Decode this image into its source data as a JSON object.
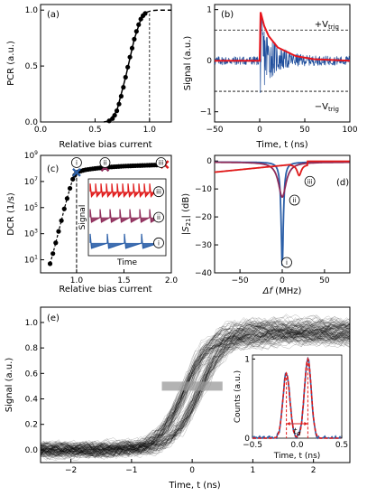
{
  "chart_data": [
    {
      "panel": "(a)",
      "type": "line",
      "xlabel": "Relative bias current",
      "ylabel": "PCR (a.u.)",
      "xlim": [
        0.0,
        1.2
      ],
      "ylim": [
        0.0,
        1.05
      ],
      "xticks": [
        "0.0",
        "0.5",
        "1.0"
      ],
      "yticks": [
        "0.0",
        "0.5",
        "1.0"
      ],
      "series": [
        {
          "style": "markers",
          "x": [
            0.63,
            0.66,
            0.68,
            0.7,
            0.72,
            0.74,
            0.76,
            0.78,
            0.8,
            0.82,
            0.84,
            0.86,
            0.88,
            0.9,
            0.92,
            0.94,
            0.96
          ],
          "y": [
            0.01,
            0.03,
            0.06,
            0.1,
            0.16,
            0.23,
            0.31,
            0.4,
            0.49,
            0.58,
            0.66,
            0.74,
            0.81,
            0.87,
            0.92,
            0.95,
            0.97
          ]
        },
        {
          "style": "solid",
          "x": [
            0.58,
            0.63,
            0.7,
            0.78,
            0.86,
            0.92,
            0.97
          ],
          "y": [
            0.0,
            0.01,
            0.1,
            0.4,
            0.74,
            0.92,
            0.98
          ]
        },
        {
          "style": "dashed",
          "x": [
            0.97,
            1.02,
            1.08,
            1.15,
            1.2
          ],
          "y": [
            0.98,
            0.995,
            1.0,
            1.0,
            1.0
          ]
        }
      ],
      "vline": 1.0
    },
    {
      "panel": "(b)",
      "type": "line",
      "xlabel": "Time, t (ns)",
      "ylabel": "Signal (a.u.)",
      "xlim": [
        -50,
        100
      ],
      "ylim": [
        -1.2,
        1.1
      ],
      "xticks": [
        "−50",
        "0",
        "50",
        "100"
      ],
      "yticks": [
        "−1",
        "0",
        "1"
      ],
      "thresholds": [
        {
          "label": "+V",
          "sub": "trig",
          "y": 0.6
        },
        {
          "label": "−V",
          "sub": "trig",
          "y": -0.6
        }
      ],
      "series": [
        {
          "name": "",
          "color": "#e8141c",
          "x": [
            -50,
            0,
            1,
            5,
            10,
            20,
            40,
            60,
            100
          ],
          "y": [
            0,
            0,
            0.95,
            0.68,
            0.48,
            0.26,
            0.09,
            0.03,
            0.0
          ]
        }
      ],
      "noise_color": "#1f4e9c"
    },
    {
      "panel": "(c)",
      "type": "scatter",
      "xlabel": "Relative bias current",
      "ylabel": "DCR (1/s)",
      "yscale": "log",
      "xlim": [
        0.62,
        2.0
      ],
      "ylim": [
        1.0,
        1000000000.0
      ],
      "xticks": [
        "1.0",
        "1.5",
        "2.0"
      ],
      "yticks": [
        "10",
        "3",
        "5",
        "7",
        "9"
      ],
      "series": [
        {
          "style": "markers",
          "x": [
            0.72,
            0.75,
            0.78,
            0.81,
            0.84,
            0.87,
            0.9,
            0.93,
            0.96,
            0.98,
            1.0
          ],
          "y": [
            5.0,
            30.0,
            200.0,
            1500.0,
            10000.0,
            80000.0,
            500000.0,
            3000000.0,
            15000000.0,
            30000000.0,
            50000000.0
          ]
        },
        {
          "style": "line",
          "x": [
            1.0,
            1.1,
            1.2,
            1.3,
            1.4,
            1.5,
            1.6,
            1.7,
            1.8,
            1.9,
            1.93
          ],
          "y": [
            50000000.0,
            80000000.0,
            100000000.0,
            120000000.0,
            135000000.0,
            150000000.0,
            160000000.0,
            170000000.0,
            180000000.0,
            190000000.0,
            200000000.0
          ]
        }
      ],
      "markers": [
        {
          "label": "i",
          "x": 1.0,
          "y": 50000000.0,
          "color": "#2b5fa8"
        },
        {
          "label": "ii",
          "x": 1.3,
          "y": 120000000.0,
          "color": "#8e2c5a"
        },
        {
          "label": "iii",
          "x": 1.93,
          "y": 200000000.0,
          "color": "#e01a1a"
        }
      ],
      "vline": 1.0,
      "inset": {
        "xlabel": "Time",
        "ylabel": "Signal",
        "labels": [
          "iii",
          "ii",
          "i"
        ],
        "colors": [
          "#e01a1a",
          "#8e2c5a",
          "#2b5fa8"
        ]
      }
    },
    {
      "panel": "(d)",
      "type": "line",
      "xlabel": "Δf (MHz)",
      "ylabel": "|S21| (dB)",
      "xlim": [
        -80,
        80
      ],
      "ylim": [
        -40,
        2
      ],
      "xticks": [
        "−50",
        "0",
        "50"
      ],
      "yticks": [
        "0",
        "−10",
        "−20",
        "−30",
        "−40"
      ],
      "series": [
        {
          "label": "i",
          "color": "#2b5fa8",
          "x": [
            -80,
            -40,
            -20,
            -10,
            -5,
            0,
            5,
            10,
            20,
            40,
            80
          ],
          "y": [
            -0.4,
            -0.8,
            -2.0,
            -5.0,
            -12,
            -36,
            -12,
            -5.0,
            -2.0,
            -0.8,
            -0.4
          ]
        },
        {
          "label": "ii",
          "color": "#8e2c5a",
          "x": [
            -80,
            -40,
            -20,
            -10,
            -5,
            0,
            5,
            10,
            20,
            40,
            80
          ],
          "y": [
            -0.4,
            -0.9,
            -2.2,
            -5.5,
            -9.0,
            -12.5,
            -9.0,
            -5.5,
            -2.2,
            -0.9,
            -0.4
          ]
        },
        {
          "label": "iii",
          "color": "#e01a1a",
          "x": [
            -80,
            -20,
            0,
            10,
            15,
            20,
            25,
            30,
            40,
            60,
            80
          ],
          "y": [
            -1.5,
            -1.5,
            -1.3,
            -1.0,
            -1.5,
            -5.0,
            -1.8,
            -0.5,
            -0.2,
            -0.1,
            -0.1
          ]
        }
      ]
    },
    {
      "panel": "(e)",
      "type": "line",
      "xlabel": "Time, t (ns)",
      "ylabel": "Signal (a.u.)",
      "xlim": [
        -2.5,
        2.6
      ],
      "ylim": [
        -0.1,
        1.12
      ],
      "xticks": [
        "−2",
        "−1",
        "0",
        "1",
        "2"
      ],
      "yticks": [
        "0.0",
        "0.2",
        "0.4",
        "0.6",
        "0.8",
        "1.0"
      ],
      "trace_count": 120,
      "mean_rise": {
        "x": [
          -1.0,
          -0.5,
          -0.2,
          0.0,
          0.2,
          0.5,
          0.8
        ],
        "y": [
          0.0,
          0.06,
          0.3,
          0.5,
          0.75,
          0.92,
          0.95
        ]
      },
      "shaded_band": {
        "x": [
          -0.5,
          0.5
        ],
        "y": 0.5
      },
      "inset": {
        "xlabel": "Time, t (ns)",
        "ylabel": "Counts (a.u.)",
        "xlim": [
          -0.5,
          0.5
        ],
        "ylim": [
          0,
          1.05
        ],
        "xticks": [
          "−0.5",
          "0.0",
          "0.5"
        ],
        "yticks": [
          "0",
          "1"
        ],
        "peaks": [
          {
            "x": -0.12,
            "y": 0.82
          },
          {
            "x": 0.12,
            "y": 1.0
          }
        ],
        "td_label": "t",
        "td_sub": "d",
        "histogram_color": "#2b5fa8",
        "fit_color": "#e01a1a"
      }
    }
  ],
  "panel_labels": [
    "(a)",
    "(b)",
    "(c)",
    "(d)",
    "(e)"
  ],
  "marker_labels": [
    "i",
    "ii",
    "iii"
  ]
}
